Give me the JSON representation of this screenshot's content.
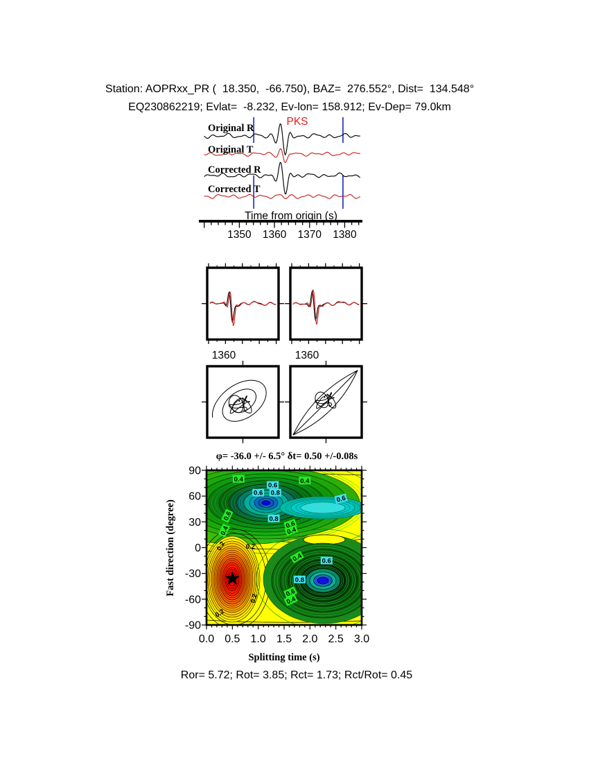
{
  "header": {
    "line1": "Station: AOPRxx_PR (  18.350,  -66.750), BAZ=  276.552°, Dist=  134.548°",
    "line2": "EQ230862219; Evlat=  -8.232, Ev-lon= 158.912; Ev-Dep= 79.0km"
  },
  "colors": {
    "trace_black": "#000000",
    "trace_red": "#cc2222",
    "window_marker_blue": "#2233bb",
    "phase_label_red": "#dd2222",
    "contour_yellow": "#ffff00",
    "label_green_bg": "#22ee22",
    "label_cyan_bg": "#44e0ee",
    "contour_blue_core": "#1111dd",
    "contour_red_core": "#ee0000"
  },
  "chart_data": [
    {
      "type": "line",
      "id": "waveform-traces",
      "series": [
        {
          "label": "Original R",
          "color": "#000000"
        },
        {
          "label": "Original T",
          "color": "#cc2222"
        },
        {
          "label": "Corrected R",
          "color": "#000000"
        },
        {
          "label": "Corrected T",
          "color": "#cc2222"
        }
      ],
      "phase_annotation": "PKS",
      "xlabel": "Time from origin (s)",
      "x_ticks": [
        1350,
        1360,
        1370,
        1380
      ],
      "x_tick_labels": [
        "1350",
        "1360",
        "1370",
        "1380"
      ],
      "xlim": [
        1338.5,
        1385
      ],
      "window_s": [
        1354.1,
        1379.5
      ],
      "phase_arrival_s": 1362.4
    },
    {
      "type": "line",
      "id": "window-zoom-panels",
      "panels": [
        {
          "x_tick_label": "1360",
          "x_tick_value": 1360
        },
        {
          "x_tick_label": "1360",
          "x_tick_value": 1360
        }
      ]
    },
    {
      "type": "scatter",
      "id": "particle-motion-panels",
      "panels": [
        {
          "motion": "elliptical-original"
        },
        {
          "motion": "linearized-corrected"
        }
      ]
    },
    {
      "type": "heatmap",
      "id": "splitting-misfit-contour",
      "title": "φ= -36.0 +/- 6.5° δt= 0.50 +/-0.08s",
      "xlabel": "Splitting time (s)",
      "ylabel": "Fast direction (degree)",
      "x_tick_labels": [
        "0.0",
        "0.5",
        "1.0",
        "1.5",
        "2.0",
        "2.5",
        "3.0"
      ],
      "x_tick_values": [
        0.0,
        0.5,
        1.0,
        1.5,
        2.0,
        2.5,
        3.0
      ],
      "y_tick_labels": [
        "90",
        "60",
        "30",
        "0",
        "-30",
        "-60",
        "-90"
      ],
      "y_tick_values": [
        90,
        60,
        30,
        0,
        -30,
        -60,
        -90
      ],
      "xlim": [
        0.0,
        3.0
      ],
      "ylim": [
        -90,
        90
      ],
      "best_fit": {
        "phi_deg": -36.0,
        "phi_err_deg": 6.5,
        "dt_s": 0.5,
        "dt_err_s": 0.08
      },
      "star": {
        "dt_s": 0.5,
        "phi_deg": -36
      },
      "minima": [
        {
          "dt_s": 1.15,
          "phi_deg": 50
        },
        {
          "dt_s": 2.25,
          "phi_deg": -38
        }
      ],
      "contour_labels": [
        {
          "dt": 0.62,
          "phi": 80,
          "t": "0.4",
          "bg": "green",
          "rot": 0
        },
        {
          "dt": 1.28,
          "phi": 73,
          "t": "0.6",
          "bg": "cyan",
          "rot": 0
        },
        {
          "dt": 1.0,
          "phi": 64,
          "t": "0.6",
          "bg": "cyan",
          "rot": 0
        },
        {
          "dt": 1.33,
          "phi": 64,
          "t": "0.8",
          "bg": "cyan",
          "rot": 0
        },
        {
          "dt": 1.9,
          "phi": 78,
          "t": "0.4",
          "bg": "green",
          "rot": 0
        },
        {
          "dt": 2.6,
          "phi": 57,
          "t": "0.6",
          "bg": "cyan",
          "rot": -15
        },
        {
          "dt": 0.4,
          "phi": 37,
          "t": "0.6",
          "bg": "green",
          "rot": -65
        },
        {
          "dt": 1.3,
          "phi": 34,
          "t": "0.8",
          "bg": "cyan",
          "rot": 0
        },
        {
          "dt": 1.62,
          "phi": 27,
          "t": "0.6",
          "bg": "green",
          "rot": -20
        },
        {
          "dt": 1.64,
          "phi": 20,
          "t": "0.4",
          "bg": "green",
          "rot": -20
        },
        {
          "dt": 0.34,
          "phi": 20,
          "t": "0.4",
          "bg": "green",
          "rot": -65
        },
        {
          "dt": 0.27,
          "phi": 2,
          "t": "0.2",
          "bg": "none",
          "rot": -60
        },
        {
          "dt": 0.85,
          "phi": 1.5,
          "t": "0.2",
          "bg": "none",
          "rot": 0
        },
        {
          "dt": 1.75,
          "phi": -11,
          "t": "0.4",
          "bg": "green",
          "rot": -30
        },
        {
          "dt": 2.32,
          "phi": -15,
          "t": "0.6",
          "bg": "cyan",
          "rot": 0
        },
        {
          "dt": 1.8,
          "phi": -37,
          "t": "0.8",
          "bg": "cyan",
          "rot": 0
        },
        {
          "dt": 1.62,
          "phi": -52,
          "t": "0.6",
          "bg": "green",
          "rot": -25
        },
        {
          "dt": 1.63,
          "phi": -61,
          "t": "0.4",
          "bg": "green",
          "rot": -25
        },
        {
          "dt": 0.91,
          "phi": -59,
          "t": "0.2",
          "bg": "none",
          "rot": -75
        },
        {
          "dt": 0.25,
          "phi": -76,
          "t": "0.2",
          "bg": "none",
          "rot": -35
        }
      ]
    }
  ],
  "footer": {
    "stats": "Ror= 5.72; Rot= 3.85; Rct= 1.73; Rct/Rot= 0.45",
    "values": {
      "Ror": 5.72,
      "Rot": 3.85,
      "Rct": 1.73,
      "Rct_over_Rot": 0.45
    }
  }
}
